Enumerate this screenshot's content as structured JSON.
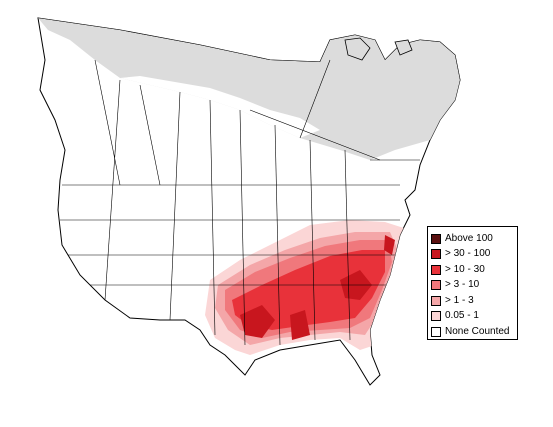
{
  "colors": {
    "background": "#ffffff",
    "land": "#ffffff",
    "outline": "#000000",
    "not_surveyed": "#dcdcdc"
  },
  "legend": {
    "items": [
      {
        "label": "Above 100",
        "color": "#5a0f0f"
      },
      {
        "label": "> 30 - 100",
        "color": "#c8161e"
      },
      {
        "label": "> 10 - 30",
        "color": "#e8323a"
      },
      {
        "label": "> 3 - 10",
        "color": "#f0787c"
      },
      {
        "label": "> 1 - 3",
        "color": "#f4a6a8"
      },
      {
        "label": "0.05 - 1",
        "color": "#fbd6d6"
      },
      {
        "label": "None Counted",
        "color": "#ffffff"
      }
    ]
  }
}
